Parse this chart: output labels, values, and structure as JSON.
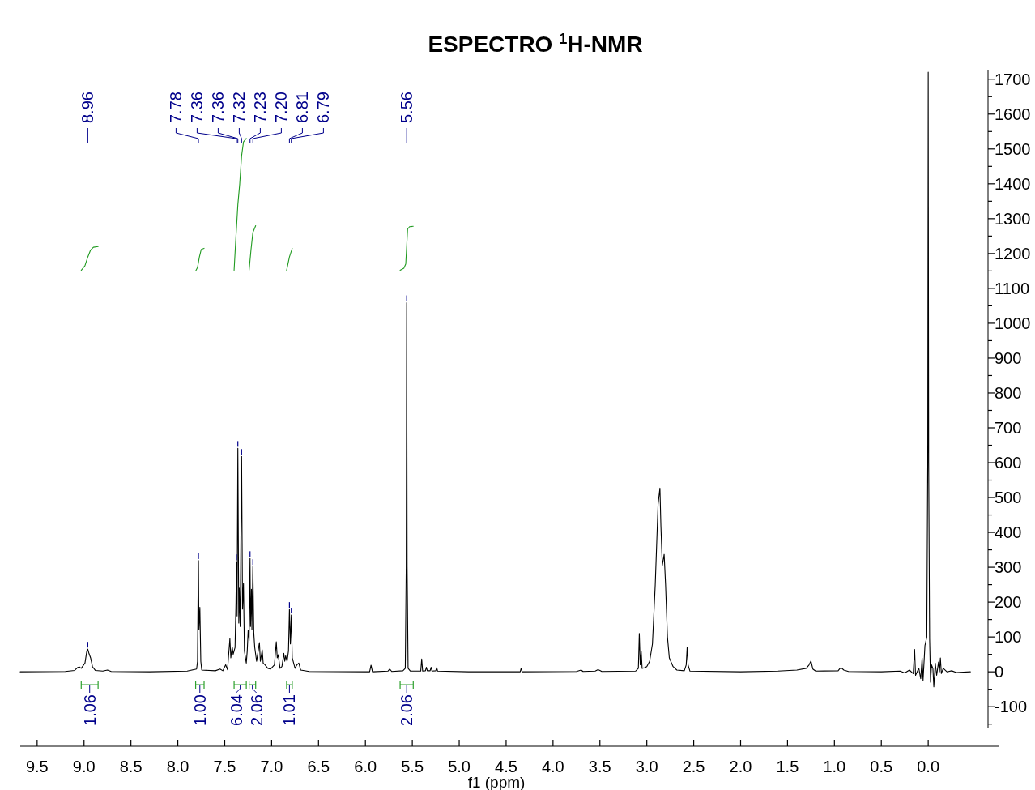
{
  "chart_data": {
    "type": "line",
    "title": "ESPECTRO $^{1}$H-NMR",
    "xlabel": "f1 (ppm)",
    "xlim": [
      9.68,
      -0.75
    ],
    "xticks": [
      {
        "value": 9.5,
        "label": "9.5"
      },
      {
        "value": 9,
        "label": "9.0"
      },
      {
        "value": 8.5,
        "label": "8.5"
      },
      {
        "value": 8,
        "label": "8.0"
      },
      {
        "value": 7.5,
        "label": "7.5"
      },
      {
        "value": 7,
        "label": "7.0"
      },
      {
        "value": 6.5,
        "label": "6.5"
      },
      {
        "value": 6,
        "label": "6.0"
      },
      {
        "value": 5.5,
        "label": "5.5"
      },
      {
        "value": 5,
        "label": "5.0"
      },
      {
        "value": 4.5,
        "label": "4.5"
      },
      {
        "value": 4,
        "label": "4.0"
      },
      {
        "value": 3.5,
        "label": "3.5"
      },
      {
        "value": 3,
        "label": "3.0"
      },
      {
        "value": 2.5,
        "label": "2.5"
      },
      {
        "value": 2,
        "label": "2.0"
      },
      {
        "value": 1.5,
        "label": "1.5"
      },
      {
        "value": 1,
        "label": "1.0"
      },
      {
        "value": 0.5,
        "label": "0.5"
      },
      {
        "value": 0,
        "label": "0.0"
      }
    ],
    "ylim": [
      -160,
      1725
    ],
    "yticks": [
      {
        "value": -150,
        "label": null
      },
      -100,
      {
        "value": -50,
        "label": null
      },
      0,
      {
        "value": 50,
        "label": null
      },
      100,
      {
        "value": 150,
        "label": null
      },
      200,
      {
        "value": 250,
        "label": null
      },
      300,
      {
        "value": 350,
        "label": null
      },
      400,
      {
        "value": 450,
        "label": null
      },
      500,
      {
        "value": 550,
        "label": null
      },
      600,
      {
        "value": 650,
        "label": null
      },
      700,
      {
        "value": 750,
        "label": null
      },
      800,
      {
        "value": 850,
        "label": null
      },
      900,
      {
        "value": 950,
        "label": null
      },
      1000,
      {
        "value": 1050,
        "label": null
      },
      1100,
      {
        "value": 1150,
        "label": null
      },
      1200,
      {
        "value": 1250,
        "label": null
      },
      1300,
      {
        "value": 1350,
        "label": null
      },
      1400,
      {
        "value": 1450,
        "label": null
      },
      1500,
      {
        "value": 1550,
        "label": null
      },
      1600,
      {
        "value": 1650,
        "label": null
      },
      1700
    ],
    "series": [
      {
        "color": "#000000",
        "x": [
          9.68,
          9.2,
          9.1,
          9.07,
          9.05,
          9.03,
          8.99,
          8.97,
          8.96,
          8.95,
          8.93,
          8.91,
          8.88,
          8.8,
          8.75,
          8.71,
          8.3,
          7.9,
          7.8,
          7.79,
          7.785,
          7.78,
          7.775,
          7.765,
          7.755,
          7.745,
          7.6,
          7.55,
          7.52,
          7.49,
          7.47,
          7.445,
          7.435,
          7.42,
          7.41,
          7.39,
          7.38,
          7.375,
          7.368,
          7.36,
          7.35,
          7.345,
          7.335,
          7.32,
          7.31,
          7.3,
          7.29,
          7.27,
          7.26,
          7.25,
          7.24,
          7.23,
          7.225,
          7.215,
          7.21,
          7.2,
          7.19,
          7.18,
          7.16,
          7.13,
          7.12,
          7.1,
          7.09,
          7.07,
          7.04,
          7.01,
          6.97,
          6.95,
          6.94,
          6.93,
          6.91,
          6.89,
          6.87,
          6.86,
          6.85,
          6.835,
          6.82,
          6.81,
          6.8,
          6.79,
          6.78,
          6.76,
          6.75,
          6.73,
          6.71,
          6.69,
          6.6,
          6.0,
          5.955,
          5.94,
          5.925,
          5.76,
          5.74,
          5.72,
          5.6,
          5.575,
          5.565,
          5.56,
          5.555,
          5.545,
          5.52,
          5.41,
          5.4,
          5.39,
          5.36,
          5.35,
          5.34,
          5.31,
          5.3,
          5.29,
          5.25,
          5.24,
          5.23,
          4.9,
          4.35,
          4.34,
          4.33,
          3.75,
          3.7,
          3.68,
          3.55,
          3.52,
          3.5,
          3.48,
          3.12,
          3.09,
          3.08,
          3.07,
          3.06,
          3.05,
          3.02,
          3.0,
          2.97,
          2.94,
          2.91,
          2.88,
          2.86,
          2.85,
          2.835,
          2.815,
          2.8,
          2.78,
          2.76,
          2.72,
          2.68,
          2.6,
          2.58,
          2.57,
          2.56,
          2.54,
          2.0,
          1.6,
          1.4,
          1.3,
          1.27,
          1.25,
          1.23,
          1.2,
          0.96,
          0.94,
          0.92,
          0.9,
          0.85,
          0.5,
          0.3,
          0.25,
          0.2,
          0.16,
          0.145,
          0.135,
          0.1,
          0.08,
          0.065,
          0.055,
          0.035,
          0.015,
          0.005,
          0.0,
          -0.005,
          -0.015,
          -0.025,
          -0.035,
          -0.05,
          -0.06,
          -0.075,
          -0.09,
          -0.11,
          -0.12,
          -0.13,
          -0.14,
          -0.16,
          -0.2,
          -0.25,
          -0.3,
          -0.45
        ],
        "values": [
          0,
          1,
          4,
          12,
          14,
          10,
          25,
          60,
          65,
          55,
          40,
          15,
          4,
          2,
          5,
          1,
          0,
          2,
          8,
          30,
          200,
          319,
          120,
          185,
          30,
          5,
          3,
          8,
          3,
          20,
          6,
          95,
          40,
          72,
          50,
          70,
          200,
          316,
          160,
          641,
          140,
          240,
          130,
          618,
          180,
          253,
          60,
          25,
          60,
          120,
          90,
          325,
          130,
          237,
          120,
          302,
          111,
          70,
          30,
          84,
          30,
          63,
          25,
          20,
          10,
          8,
          20,
          86,
          40,
          49,
          10,
          15,
          53,
          30,
          46,
          30,
          60,
          179,
          80,
          163,
          40,
          20,
          10,
          20,
          25,
          5,
          1,
          0,
          0,
          19,
          0,
          2,
          8,
          1,
          3,
          10,
          300,
          1059,
          300,
          10,
          2,
          2,
          37,
          2,
          3,
          13,
          3,
          3,
          13,
          2,
          3,
          12,
          2,
          0,
          0,
          10,
          0,
          1,
          5,
          1,
          2,
          6,
          4,
          1,
          2,
          10,
          110,
          20,
          60,
          10,
          12,
          15,
          30,
          80,
          250,
          480,
          527,
          420,
          305,
          337,
          250,
          100,
          40,
          15,
          5,
          3,
          20,
          70,
          20,
          2,
          0,
          2,
          5,
          10,
          20,
          31,
          8,
          2,
          3,
          10,
          10,
          5,
          1,
          0,
          2,
          -3,
          5,
          -5,
          64,
          -10,
          10,
          -20,
          40,
          -25,
          75,
          100,
          600,
          1720,
          600,
          95,
          -30,
          20,
          10,
          -43,
          25,
          -10,
          28,
          0,
          40,
          -5,
          10,
          0,
          3,
          -2,
          0
        ]
      },
      {
        "color": "#1f9a1f",
        "x": [
          9.03,
          8.99,
          8.96,
          8.93,
          8.9,
          8.85
        ],
        "values": [
          1152,
          1165,
          1190,
          1210,
          1218,
          1220
        ]
      },
      {
        "color": "#1f9a1f",
        "x": [
          7.81,
          7.79,
          7.77,
          7.75,
          7.72
        ],
        "values": [
          1150,
          1160,
          1190,
          1212,
          1215
        ]
      },
      {
        "color": "#1f9a1f",
        "x": [
          7.4,
          7.38,
          7.36,
          7.34,
          7.32,
          7.3,
          7.27
        ],
        "values": [
          1152,
          1250,
          1340,
          1400,
          1480,
          1520,
          1530
        ]
      },
      {
        "color": "#1f9a1f",
        "x": [
          7.24,
          7.22,
          7.2,
          7.17
        ],
        "values": [
          1152,
          1210,
          1260,
          1280
        ]
      },
      {
        "color": "#1f9a1f",
        "x": [
          6.84,
          6.81,
          6.78
        ],
        "values": [
          1152,
          1190,
          1215
        ]
      },
      {
        "color": "#1f9a1f",
        "x": [
          5.63,
          5.59,
          5.57,
          5.56,
          5.55,
          5.53,
          5.49
        ],
        "values": [
          1152,
          1158,
          1170,
          1220,
          1270,
          1277,
          1278
        ]
      }
    ],
    "annotations": [
      {
        "text": "8.96",
        "x": 8.96
      },
      {
        "text": "7.78",
        "x": 7.78
      },
      {
        "text": "7.36",
        "x": 7.375
      },
      {
        "text": "7.36",
        "x": 7.36
      },
      {
        "text": "7.32",
        "x": 7.32
      },
      {
        "text": "7.23",
        "x": 7.23
      },
      {
        "text": "7.20",
        "x": 7.2
      },
      {
        "text": "6.81",
        "x": 6.81
      },
      {
        "text": "6.79",
        "x": 6.79
      },
      {
        "text": "5.56",
        "x": 5.56
      },
      "1.06",
      "1.00",
      "6.04",
      "2.06",
      "1.01",
      "2.06"
    ]
  }
}
